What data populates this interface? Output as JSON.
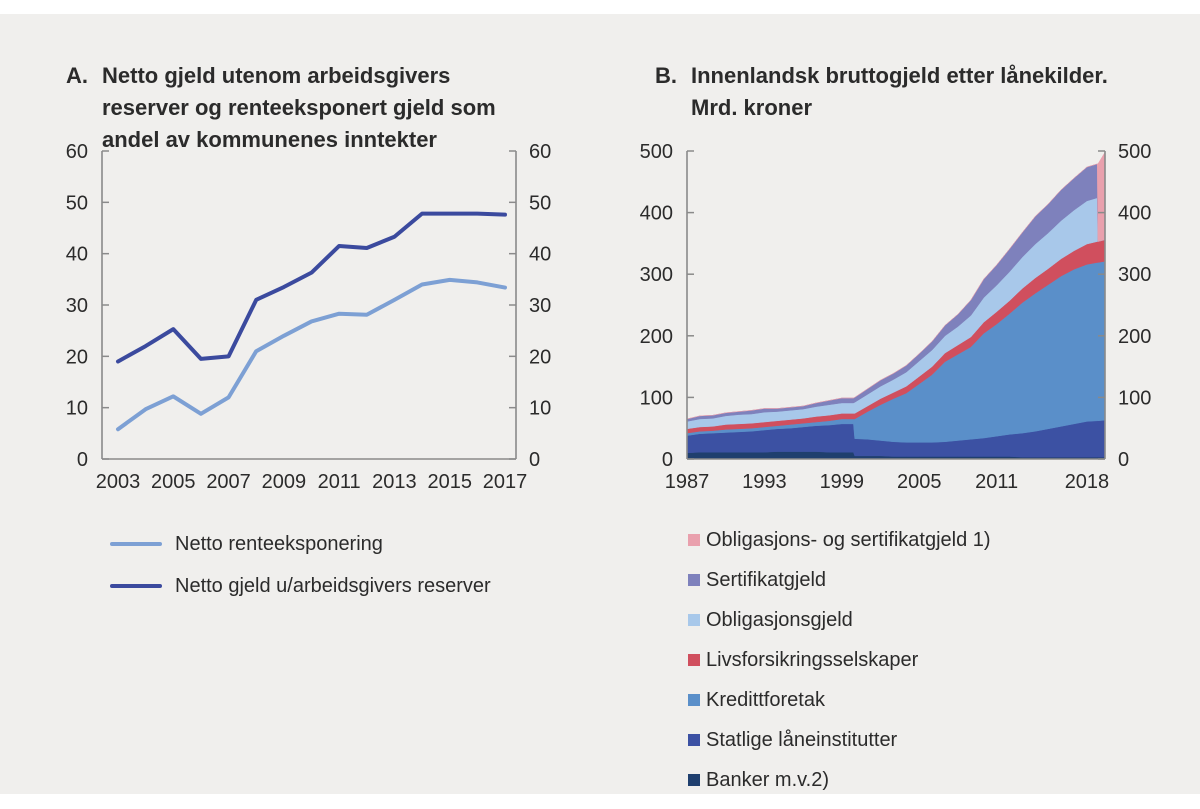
{
  "panel": {
    "page_background": "#ffffff",
    "panel_background": "#f0efed",
    "axis_color": "#8a8a8a",
    "text_color": "#2b2b2b"
  },
  "chart_data": [
    {
      "id": "a",
      "type": "line",
      "label": "A.",
      "title": "Netto gjeld utenom arbeidsgivers reserver og renteeksponert gjeld som andel av kommunenes inntekter",
      "x": [
        2003,
        2004,
        2005,
        2006,
        2007,
        2008,
        2009,
        2010,
        2011,
        2012,
        2013,
        2014,
        2015,
        2016,
        2017
      ],
      "x_tick_labels": [
        "2003",
        "2005",
        "2007",
        "2009",
        "2011",
        "2013",
        "2015",
        "2017"
      ],
      "x_tick_years": [
        2003,
        2005,
        2007,
        2009,
        2011,
        2013,
        2015,
        2017
      ],
      "y_ticks": [
        0,
        10,
        20,
        30,
        40,
        50,
        60
      ],
      "ylim": [
        0,
        60
      ],
      "grid": false,
      "dual_axis": true,
      "legend_position": "below-left",
      "series": [
        {
          "name": "Netto renteeksponering",
          "color": "#7da0d4",
          "values": [
            5.8,
            9.7,
            12.2,
            8.8,
            12.0,
            21.0,
            24.0,
            26.8,
            28.3,
            28.1,
            31.0,
            34.0,
            34.9,
            34.4,
            33.4
          ]
        },
        {
          "name": "Netto gjeld u/arbeidsgivers reserver",
          "color": "#3b4a9e",
          "values": [
            19.0,
            22.0,
            25.3,
            19.5,
            20.0,
            31.0,
            33.5,
            36.3,
            41.5,
            41.1,
            43.3,
            47.8,
            47.8,
            47.8,
            47.6
          ]
        }
      ]
    },
    {
      "id": "b",
      "type": "area",
      "label": "B.",
      "title": "Innenlandsk bruttogjeld etter lånekilder. Mrd. kroner",
      "x": [
        1987,
        1988,
        1989,
        1990,
        1991,
        1992,
        1993,
        1994,
        1995,
        1996,
        1997,
        1998,
        1999,
        1999.9,
        2000,
        2001,
        2002,
        2003,
        2004,
        2005,
        2006,
        2007,
        2008,
        2009,
        2010,
        2011,
        2012,
        2013,
        2014,
        2015,
        2016,
        2017,
        2018,
        2018.8,
        2018.85,
        2019.4
      ],
      "xlim": [
        1987,
        2019.4
      ],
      "x_tick_labels": [
        "1987",
        "1993",
        "1999",
        "2005",
        "2011",
        "2018"
      ],
      "x_tick_years": [
        1987,
        1993,
        1999,
        2005,
        2011,
        2018
      ],
      "y_ticks": [
        0,
        100,
        200,
        300,
        400,
        500
      ],
      "ylim": [
        0,
        500
      ],
      "grid": false,
      "dual_axis": true,
      "legend_position": "below",
      "legend_reverse": true,
      "stack_note": "series listed bottom-to-top",
      "series": [
        {
          "name": "Banker m.v.2)",
          "color": "#1f3f6e",
          "values": [
            10,
            11,
            11,
            11,
            11,
            11,
            11,
            12,
            12,
            12,
            12,
            11,
            11,
            11,
            5,
            5,
            5,
            4,
            4,
            4,
            4,
            4,
            4,
            4,
            4,
            4,
            4,
            3,
            3,
            3,
            3,
            3,
            3,
            3,
            3,
            3
          ]
        },
        {
          "name": "Statlige låneinstitutter",
          "color": "#3c51a3",
          "values": [
            28,
            30,
            31,
            32,
            33,
            34,
            36,
            37,
            38,
            40,
            42,
            44,
            46,
            46,
            28,
            27,
            25,
            24,
            23,
            23,
            23,
            24,
            26,
            28,
            30,
            33,
            36,
            39,
            42,
            46,
            50,
            54,
            58,
            59,
            59,
            60
          ]
        },
        {
          "name": "Kredittforetak",
          "color": "#5a8fc9",
          "values": [
            4,
            4,
            4,
            5,
            5,
            5,
            5,
            5,
            6,
            6,
            6,
            7,
            8,
            8,
            32,
            45,
            58,
            70,
            80,
            95,
            110,
            130,
            140,
            150,
            170,
            182,
            196,
            212,
            224,
            234,
            244,
            251,
            255,
            257,
            257,
            258
          ]
        },
        {
          "name": "Livsforsikringsselskaper",
          "color": "#d04f5e",
          "values": [
            7,
            7,
            7,
            8,
            8,
            8,
            8,
            8,
            8,
            8,
            9,
            9,
            9,
            9,
            9,
            9,
            10,
            10,
            11,
            12,
            13,
            14,
            15,
            16,
            18,
            20,
            21,
            23,
            25,
            26,
            28,
            30,
            33,
            34,
            34,
            35
          ]
        },
        {
          "name": "Obligasjonsgjeld",
          "color": "#a8c8ea",
          "values": [
            12,
            13,
            13,
            14,
            15,
            15,
            16,
            15,
            15,
            15,
            16,
            17,
            17,
            17,
            18,
            19,
            20,
            21,
            23,
            25,
            27,
            28,
            30,
            35,
            40,
            43,
            47,
            51,
            55,
            58,
            62,
            66,
            70,
            71,
            0,
            0
          ]
        },
        {
          "name": "Sertifikatgjeld",
          "color": "#7e81bc",
          "values": [
            4,
            5,
            5,
            5,
            5,
            6,
            6,
            5,
            5,
            5,
            6,
            7,
            8,
            8,
            8,
            9,
            10,
            10,
            11,
            12,
            14,
            17,
            20,
            25,
            30,
            33,
            37,
            40,
            45,
            47,
            50,
            52,
            55,
            55,
            0,
            0
          ]
        },
        {
          "name": "Obligasjons- og sertifikatgjeld 1)",
          "color": "#e9a0ad",
          "values": [
            0,
            0,
            0,
            0,
            0,
            0,
            0,
            0,
            0,
            0,
            0,
            0,
            0,
            0,
            0,
            0,
            0,
            0,
            0,
            0,
            0,
            0,
            0,
            0,
            0,
            0,
            0,
            0,
            0,
            0,
            0,
            0,
            0,
            0,
            126,
            142
          ]
        }
      ]
    }
  ]
}
